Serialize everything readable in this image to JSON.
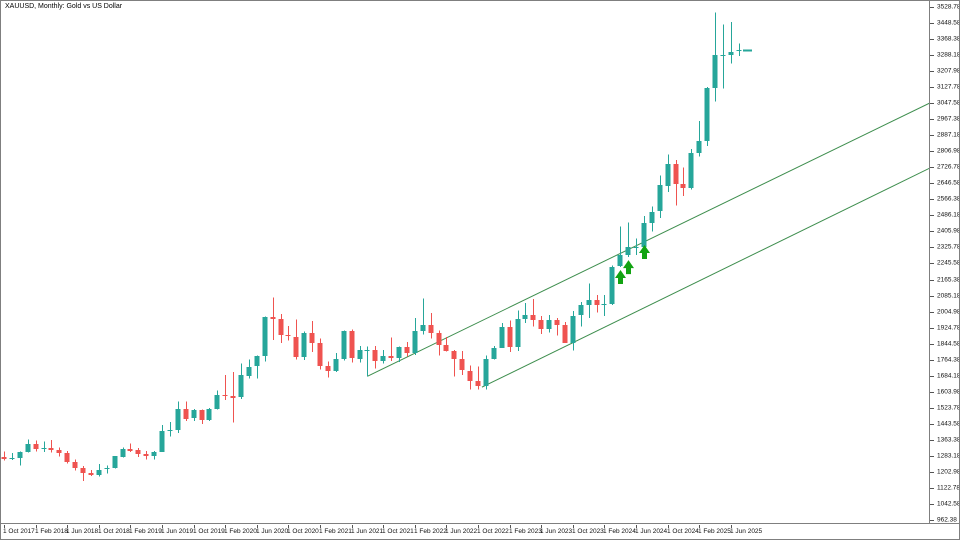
{
  "window": {
    "title": "XAUUSD, Monthly: Gold vs US Dollar"
  },
  "colors": {
    "background": "#ffffff",
    "bull": "#26a69a",
    "bear": "#ef5350",
    "channel_line": "#3e8e4e",
    "buy_arrow": "#12a312",
    "axis_text": "#111111",
    "frame": "#7f7f7f"
  },
  "chart_data": {
    "type": "candlestick",
    "title": "XAUUSD, Monthly: Gold vs US Dollar",
    "symbol": "XAUUSD",
    "timeframe": "Monthly",
    "grid": "off",
    "y_axis": {
      "side": "right",
      "tick_step": 80.2,
      "ticks": [
        "3528.78",
        "3448.58",
        "3368.38",
        "3288.18",
        "3207.98",
        "3127.78",
        "3047.58",
        "2967.38",
        "2887.18",
        "2806.98",
        "2726.78",
        "2646.58",
        "2566.38",
        "2486.18",
        "2405.98",
        "2325.78",
        "2245.58",
        "2165.38",
        "2085.18",
        "2004.98",
        "1924.78",
        "1844.58",
        "1764.38",
        "1684.18",
        "1603.98",
        "1523.78",
        "1443.58",
        "1363.38",
        "1283.18",
        "1202.98",
        "1122.78",
        "1042.58",
        "962.38"
      ]
    },
    "x_axis": {
      "side": "bottom",
      "label_month_step": 4,
      "labels": [
        "1 Oct 2017",
        "1 Feb 2018",
        "1 Jun 2018",
        "1 Oct 2018",
        "1 Feb 2019",
        "1 Jun 2019",
        "1 Oct 2019",
        "1 Feb 2020",
        "1 Jun 2020",
        "1 Oct 2020",
        "1 Feb 2021",
        "1 Jun 2021",
        "1 Oct 2021",
        "1 Feb 2022",
        "1 Jun 2022",
        "1 Oct 2022",
        "1 Feb 2023",
        "1 Jun 2023",
        "1 Oct 2023",
        "1 Feb 2024",
        "1 Jun 2024",
        "1 Oct 2024",
        "1 Feb 2025",
        "1 Jun 2025"
      ]
    },
    "first_candle_month": "2017-10",
    "ohlc_format": "[open, high, low, close]",
    "candles": [
      [
        1280,
        1306,
        1261,
        1271
      ],
      [
        1271,
        1299,
        1265,
        1275
      ],
      [
        1275,
        1307,
        1236,
        1303
      ],
      [
        1303,
        1366,
        1302,
        1345
      ],
      [
        1345,
        1362,
        1307,
        1318
      ],
      [
        1318,
        1357,
        1303,
        1325
      ],
      [
        1325,
        1365,
        1301,
        1315
      ],
      [
        1315,
        1326,
        1282,
        1298
      ],
      [
        1298,
        1309,
        1247,
        1253
      ],
      [
        1253,
        1266,
        1211,
        1224
      ],
      [
        1224,
        1235,
        1160,
        1201
      ],
      [
        1201,
        1214,
        1183,
        1192
      ],
      [
        1192,
        1243,
        1181,
        1215
      ],
      [
        1215,
        1237,
        1196,
        1222
      ],
      [
        1222,
        1284,
        1221,
        1282
      ],
      [
        1282,
        1326,
        1277,
        1321
      ],
      [
        1321,
        1346,
        1305,
        1313
      ],
      [
        1313,
        1324,
        1280,
        1292
      ],
      [
        1292,
        1310,
        1266,
        1283
      ],
      [
        1283,
        1308,
        1266,
        1305
      ],
      [
        1305,
        1439,
        1305,
        1409
      ],
      [
        1409,
        1453,
        1382,
        1414
      ],
      [
        1414,
        1555,
        1400,
        1520
      ],
      [
        1520,
        1557,
        1459,
        1472
      ],
      [
        1472,
        1519,
        1458,
        1513
      ],
      [
        1513,
        1516,
        1445,
        1464
      ],
      [
        1464,
        1525,
        1458,
        1517
      ],
      [
        1517,
        1611,
        1517,
        1589
      ],
      [
        1589,
        1689,
        1563,
        1585
      ],
      [
        1585,
        1703,
        1451,
        1577
      ],
      [
        1577,
        1747,
        1568,
        1687
      ],
      [
        1687,
        1765,
        1670,
        1730
      ],
      [
        1730,
        1786,
        1671,
        1781
      ],
      [
        1781,
        1981,
        1757,
        1976
      ],
      [
        1976,
        2075,
        1863,
        1968
      ],
      [
        1968,
        1992,
        1849,
        1886
      ],
      [
        1886,
        1933,
        1860,
        1879
      ],
      [
        1879,
        1965,
        1765,
        1777
      ],
      [
        1777,
        1906,
        1764,
        1898
      ],
      [
        1898,
        1959,
        1803,
        1848
      ],
      [
        1848,
        1871,
        1717,
        1734
      ],
      [
        1734,
        1755,
        1677,
        1708
      ],
      [
        1708,
        1798,
        1704,
        1769
      ],
      [
        1769,
        1912,
        1761,
        1907
      ],
      [
        1907,
        1917,
        1750,
        1770
      ],
      [
        1770,
        1834,
        1751,
        1814
      ],
      [
        1814,
        1832,
        1682,
        1814
      ],
      [
        1814,
        1834,
        1721,
        1757
      ],
      [
        1757,
        1813,
        1746,
        1783
      ],
      [
        1783,
        1877,
        1759,
        1775
      ],
      [
        1775,
        1831,
        1753,
        1829
      ],
      [
        1829,
        1853,
        1780,
        1797
      ],
      [
        1797,
        1974,
        1788,
        1909
      ],
      [
        1909,
        2070,
        1890,
        1937
      ],
      [
        1937,
        1998,
        1872,
        1897
      ],
      [
        1897,
        1910,
        1787,
        1837
      ],
      [
        1837,
        1879,
        1805,
        1807
      ],
      [
        1807,
        1814,
        1681,
        1766
      ],
      [
        1766,
        1808,
        1688,
        1711
      ],
      [
        1711,
        1735,
        1615,
        1661
      ],
      [
        1661,
        1730,
        1617,
        1634
      ],
      [
        1634,
        1787,
        1616,
        1769
      ],
      [
        1769,
        1833,
        1765,
        1824
      ],
      [
        1824,
        1949,
        1823,
        1928
      ],
      [
        1928,
        1960,
        1804,
        1827
      ],
      [
        1827,
        2010,
        1809,
        1969
      ],
      [
        1969,
        2049,
        1949,
        1990
      ],
      [
        1990,
        2067,
        1932,
        1963
      ],
      [
        1963,
        1983,
        1893,
        1919
      ],
      [
        1919,
        1987,
        1902,
        1965
      ],
      [
        1965,
        1972,
        1885,
        1940
      ],
      [
        1940,
        1953,
        1848,
        1849
      ],
      [
        1849,
        2009,
        1810,
        1984
      ],
      [
        1984,
        2052,
        1931,
        2036
      ],
      [
        2036,
        2146,
        1973,
        2063
      ],
      [
        2063,
        2088,
        2001,
        2040
      ],
      [
        2040,
        2088,
        1984,
        2044
      ],
      [
        2044,
        2236,
        2039,
        2230
      ],
      [
        2230,
        2431,
        2228,
        2286
      ],
      [
        2286,
        2450,
        2277,
        2327
      ],
      [
        2327,
        2369,
        2287,
        2327
      ],
      [
        2327,
        2483,
        2353,
        2448
      ],
      [
        2448,
        2531,
        2404,
        2503
      ],
      [
        2503,
        2685,
        2472,
        2635
      ],
      [
        2635,
        2790,
        2603,
        2744
      ],
      [
        2744,
        2762,
        2536,
        2643
      ],
      [
        2643,
        2726,
        2583,
        2625
      ],
      [
        2625,
        2817,
        2615,
        2798
      ],
      [
        2798,
        2956,
        2780,
        2858
      ],
      [
        2858,
        3127,
        2832,
        3124
      ],
      [
        3124,
        3500,
        3054,
        3288
      ],
      [
        3288,
        3438,
        3120,
        3289
      ],
      [
        3289,
        3452,
        3245,
        3303
      ],
      [
        3303,
        3345,
        3282,
        3310
      ]
    ],
    "annotations": {
      "channel_lines": [
        {
          "m1": 46,
          "p1": 1682,
          "m2": 117.2,
          "p2": 3047
        },
        {
          "m1": 60.5,
          "p1": 1628,
          "m2": 117.2,
          "p2": 2722
        }
      ],
      "buy_arrow_candle_indices": [
        78,
        79,
        81
      ],
      "last_price_dash": 3310
    }
  }
}
